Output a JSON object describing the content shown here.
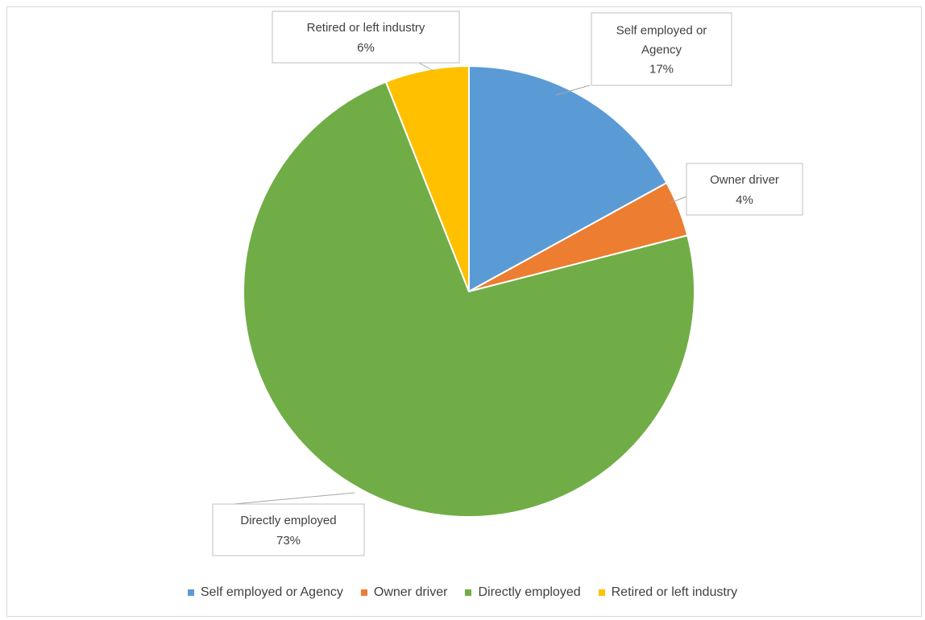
{
  "chart_data": {
    "type": "pie",
    "title": "",
    "categories": [
      "Self employed or Agency",
      "Owner driver",
      "Directly employed",
      "Retired or left industry"
    ],
    "values": [
      17,
      4,
      73,
      6
    ],
    "value_labels": [
      "17%",
      "4%",
      "73%",
      "6%"
    ],
    "colors": [
      "#5B9BD5",
      "#ED7D31",
      "#70AD47",
      "#FFC000"
    ],
    "legend_position": "bottom",
    "data_label_lines": [
      [
        "Self employed or",
        "Agency",
        "17%"
      ],
      [
        "Owner driver",
        "4%"
      ],
      [
        "Directly employed",
        "73%"
      ],
      [
        "Retired or left industry",
        "6%"
      ]
    ]
  }
}
